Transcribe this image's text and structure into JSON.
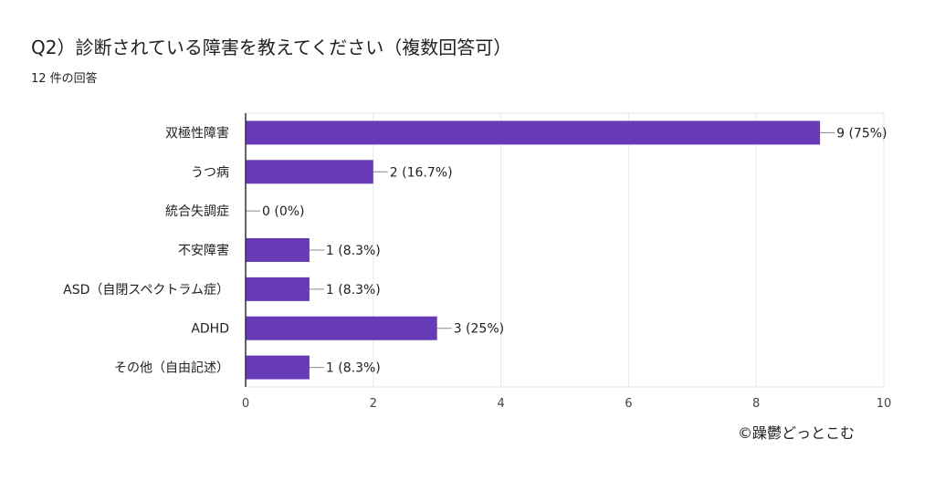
{
  "title": "Q2）診断されている障害を教えてください（複数回答可）",
  "subtitle": "12 件の回答",
  "copyright": "©躁鬱どっとこむ",
  "colors": {
    "bar": "#673ab7",
    "grid": "#e6e6e6",
    "axis": "#333333",
    "connector": "#888888"
  },
  "chart_data": {
    "type": "bar",
    "orientation": "horizontal",
    "categories": [
      "双極性障害",
      "うつ病",
      "統合失調症",
      "不安障害",
      "ASD（自閉スペクトラム症）",
      "ADHD",
      "その他（自由記述）"
    ],
    "values": [
      9,
      2,
      0,
      1,
      1,
      3,
      1
    ],
    "data_labels": [
      "9 (75%)",
      "2 (16.7%)",
      "0 (0%)",
      "1 (8.3%)",
      "1 (8.3%)",
      "3 (25%)",
      "1 (8.3%)"
    ],
    "xlim": [
      0,
      10
    ],
    "xticks": [
      0,
      2,
      4,
      6,
      8,
      10
    ],
    "grid": true
  }
}
